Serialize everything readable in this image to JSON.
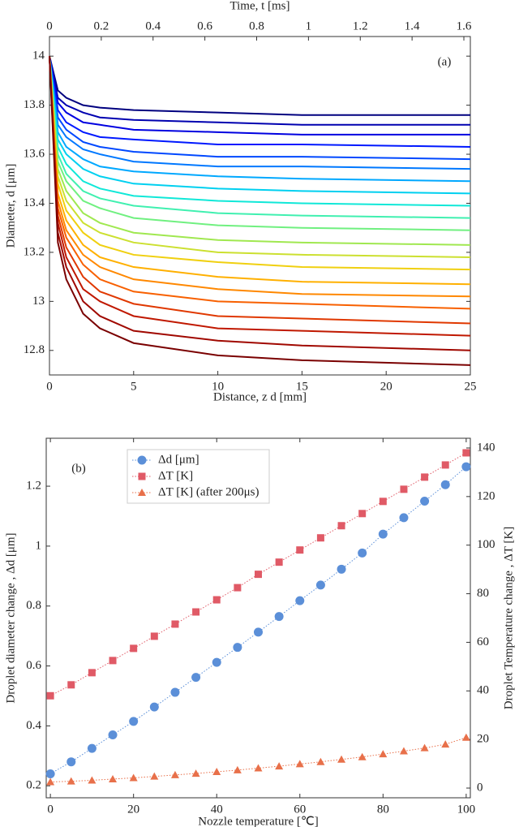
{
  "chart_data": [
    {
      "type": "line",
      "x_label": "Distance, z d [mm]",
      "y_label": "Diameter, d [μm]",
      "x2_label": "Time,  t  [ms]",
      "annotation": "(a)",
      "x": [
        0,
        0.5,
        1,
        2,
        3,
        5,
        10,
        15,
        25
      ],
      "xlim": [
        0,
        25
      ],
      "xticks": [
        0,
        5,
        10,
        15,
        20,
        25
      ],
      "x2lim": [
        0,
        1.625
      ],
      "x2ticks": [
        0,
        0.2,
        0.4,
        0.6,
        0.8,
        1,
        1.2,
        1.4,
        1.6
      ],
      "ylim": [
        12.7,
        14.08
      ],
      "yticks": [
        12.8,
        13,
        13.2,
        13.4,
        13.6,
        13.8,
        14
      ],
      "grid": false,
      "series": [
        {
          "color": "#00007f",
          "values": [
            14,
            13.86,
            13.83,
            13.8,
            13.79,
            13.78,
            13.77,
            13.76,
            13.76
          ]
        },
        {
          "color": "#0000b0",
          "values": [
            14,
            13.83,
            13.8,
            13.77,
            13.75,
            13.74,
            13.73,
            13.72,
            13.72
          ]
        },
        {
          "color": "#0000e0",
          "values": [
            14,
            13.81,
            13.77,
            13.73,
            13.72,
            13.7,
            13.69,
            13.68,
            13.68
          ]
        },
        {
          "color": "#0018ff",
          "values": [
            14,
            13.78,
            13.73,
            13.69,
            13.67,
            13.66,
            13.64,
            13.64,
            13.63
          ]
        },
        {
          "color": "#0048ff",
          "values": [
            14,
            13.75,
            13.7,
            13.65,
            13.63,
            13.61,
            13.59,
            13.59,
            13.58
          ]
        },
        {
          "color": "#0078ff",
          "values": [
            14,
            13.72,
            13.67,
            13.62,
            13.6,
            13.57,
            13.55,
            13.55,
            13.54
          ]
        },
        {
          "color": "#00a8ff",
          "values": [
            14,
            13.69,
            13.63,
            13.58,
            13.55,
            13.53,
            13.51,
            13.5,
            13.49
          ]
        },
        {
          "color": "#00d0f0",
          "values": [
            14,
            13.66,
            13.6,
            13.54,
            13.51,
            13.48,
            13.46,
            13.45,
            13.44
          ]
        },
        {
          "color": "#10e8d8",
          "values": [
            14,
            13.63,
            13.56,
            13.49,
            13.46,
            13.43,
            13.41,
            13.4,
            13.39
          ]
        },
        {
          "color": "#40f0b0",
          "values": [
            14,
            13.6,
            13.52,
            13.45,
            13.42,
            13.39,
            13.36,
            13.35,
            13.34
          ]
        },
        {
          "color": "#70f080",
          "values": [
            14,
            13.57,
            13.49,
            13.41,
            13.38,
            13.34,
            13.31,
            13.3,
            13.29
          ]
        },
        {
          "color": "#a0e850",
          "values": [
            14,
            13.54,
            13.45,
            13.36,
            13.32,
            13.28,
            13.25,
            13.24,
            13.23
          ]
        },
        {
          "color": "#cce030",
          "values": [
            14,
            13.51,
            13.41,
            13.32,
            13.28,
            13.24,
            13.2,
            13.19,
            13.18
          ]
        },
        {
          "color": "#f0d010",
          "values": [
            14,
            13.48,
            13.37,
            13.28,
            13.23,
            13.19,
            13.16,
            13.14,
            13.13
          ]
        },
        {
          "color": "#ffb000",
          "values": [
            14,
            13.44,
            13.33,
            13.23,
            13.18,
            13.14,
            13.1,
            13.08,
            13.07
          ]
        },
        {
          "color": "#ff8800",
          "values": [
            14,
            13.41,
            13.29,
            13.19,
            13.14,
            13.09,
            13.05,
            13.03,
            13.02
          ]
        },
        {
          "color": "#f86000",
          "values": [
            14,
            13.38,
            13.26,
            13.15,
            13.09,
            13.04,
            13.0,
            12.99,
            12.97
          ]
        },
        {
          "color": "#e03800",
          "values": [
            14,
            13.35,
            13.22,
            13.1,
            13.04,
            12.99,
            12.94,
            12.93,
            12.91
          ]
        },
        {
          "color": "#c01800",
          "values": [
            14,
            13.32,
            13.18,
            13.05,
            13.0,
            12.94,
            12.89,
            12.88,
            12.86
          ]
        },
        {
          "color": "#a00800",
          "values": [
            14,
            13.28,
            13.14,
            13.0,
            12.94,
            12.88,
            12.84,
            12.82,
            12.8
          ]
        },
        {
          "color": "#7a0000",
          "values": [
            14,
            13.24,
            13.09,
            12.95,
            12.89,
            12.83,
            12.78,
            12.76,
            12.74
          ]
        }
      ]
    },
    {
      "type": "line",
      "x_label": "Nozzle temperature [℃]",
      "y_label": "Droplet diameter change ,  Δd [μm]",
      "y2_label": "Droplet Temperature change ,  ΔT [K]",
      "annotation": "(b)",
      "y_color": "#1a6aa8",
      "y2_color": "#a51c30",
      "x": [
        0,
        5,
        10,
        15,
        20,
        25,
        30,
        35,
        40,
        45,
        50,
        55,
        60,
        65,
        70,
        75,
        80,
        85,
        90,
        95,
        100
      ],
      "xlim": [
        -1,
        101
      ],
      "xticks": [
        0,
        20,
        40,
        60,
        80,
        100
      ],
      "ylim": [
        0.16,
        1.36
      ],
      "yticks": [
        0.2,
        0.4,
        0.6,
        0.8,
        1,
        1.2
      ],
      "y2lim": [
        -4,
        144
      ],
      "y2ticks": [
        0,
        20,
        40,
        60,
        80,
        100,
        120,
        140
      ],
      "grid": false,
      "legend": "upper left",
      "linestyle": "dotted",
      "series": [
        {
          "name": "Δd [μm]",
          "color": "#5b8fd8",
          "marker": "circle",
          "values": [
            0.24,
            0.28,
            0.325,
            0.37,
            0.415,
            0.463,
            0.512,
            0.562,
            0.612,
            0.662,
            0.713,
            0.765,
            0.818,
            0.87,
            0.923,
            0.977,
            1.04,
            1.095,
            1.15,
            1.205,
            1.265
          ]
        },
        {
          "name": "ΔT [K]",
          "color": "#e05a66",
          "marker": "square",
          "axis": "y2",
          "values": [
            38,
            42.5,
            47.5,
            52.5,
            57.5,
            62.5,
            67.5,
            72.5,
            77.5,
            82.5,
            88,
            93,
            98,
            103,
            108,
            113,
            118,
            123,
            128,
            133,
            138
          ]
        },
        {
          "name": "ΔT [K] (after 200μs)",
          "color": "#e8704a",
          "marker": "triangle",
          "axis": "y2",
          "values": [
            2.5,
            2.8,
            3.2,
            3.7,
            4.2,
            4.8,
            5.4,
            6,
            6.7,
            7.4,
            8.2,
            9,
            9.9,
            10.8,
            11.8,
            12.8,
            14,
            15.2,
            16.5,
            18,
            20.8
          ]
        }
      ]
    }
  ]
}
